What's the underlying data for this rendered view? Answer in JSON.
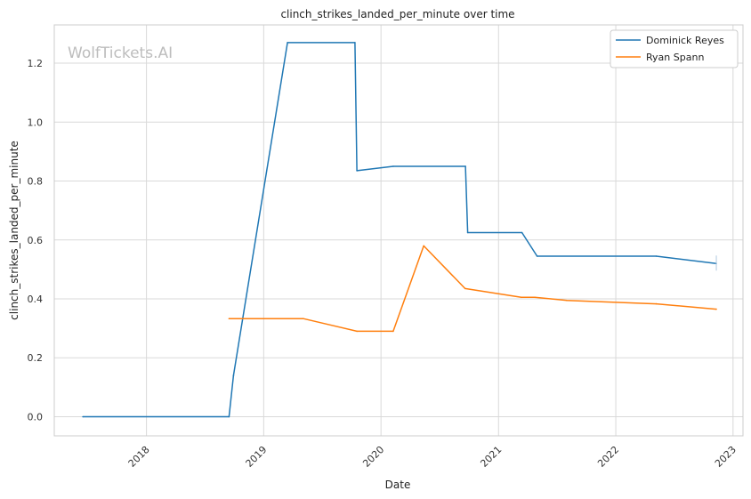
{
  "chart_data": {
    "type": "line",
    "title": "clinch_strikes_landed_per_minute over time",
    "xlabel": "Date",
    "ylabel": "clinch_strikes_landed_per_minute",
    "watermark": "WolfTickets.AI",
    "x_ticks": [
      "2018",
      "2019",
      "2020",
      "2021",
      "2022",
      "2023"
    ],
    "y_ticks": [
      "0.0",
      "0.2",
      "0.4",
      "0.6",
      "0.8",
      "1.0",
      "1.2"
    ],
    "ylim": [
      -0.065,
      1.33
    ],
    "xlim": [
      "2017-03-20",
      "2023-02-01"
    ],
    "grid": true,
    "legend_position": "top-right",
    "series": [
      {
        "name": "Dominick Reyes",
        "color": "#1f77b4",
        "points": [
          [
            "2017-06-17",
            0.0
          ],
          [
            "2018-09-15",
            0.0
          ],
          [
            "2018-09-29",
            0.14
          ],
          [
            "2019-03-16",
            1.27
          ],
          [
            "2019-10-12",
            1.27
          ],
          [
            "2019-10-18",
            0.835
          ],
          [
            "2020-02-08",
            0.85
          ],
          [
            "2020-09-20",
            0.85
          ],
          [
            "2020-09-27",
            0.625
          ],
          [
            "2021-03-15",
            0.625
          ],
          [
            "2021-05-01",
            0.545
          ],
          [
            "2022-05-07",
            0.545
          ],
          [
            "2022-11-10",
            0.52
          ]
        ]
      },
      {
        "name": "Ryan Spann",
        "color": "#ff7f0e",
        "points": [
          [
            "2018-09-15",
            0.333
          ],
          [
            "2019-05-04",
            0.333
          ],
          [
            "2019-10-18",
            0.29
          ],
          [
            "2020-02-08",
            0.29
          ],
          [
            "2020-05-13",
            0.58
          ],
          [
            "2020-09-19",
            0.435
          ],
          [
            "2021-03-13",
            0.405
          ],
          [
            "2021-04-24",
            0.405
          ],
          [
            "2021-08-01",
            0.395
          ],
          [
            "2022-05-07",
            0.383
          ],
          [
            "2022-11-10",
            0.365
          ]
        ]
      }
    ]
  }
}
